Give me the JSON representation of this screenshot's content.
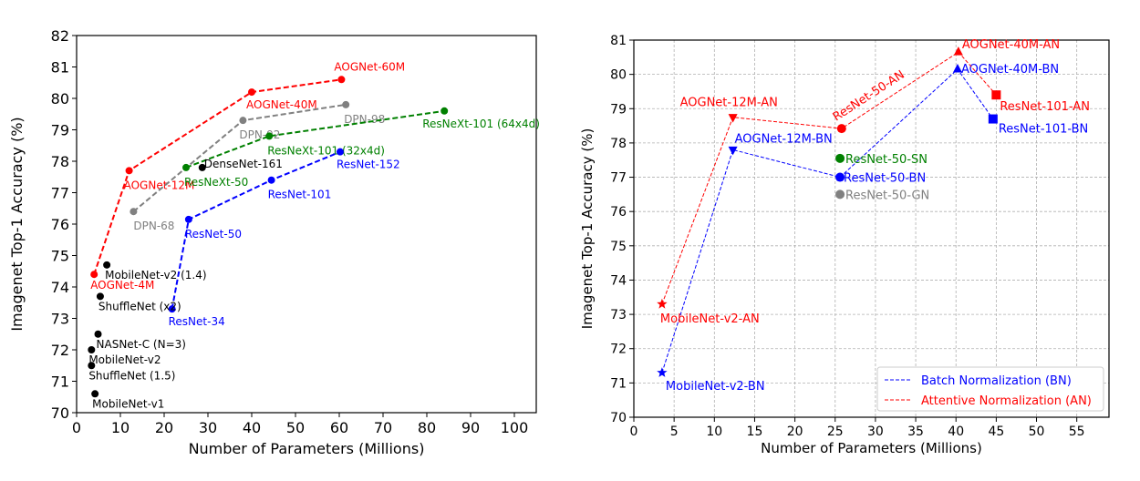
{
  "chart_data": [
    {
      "type": "line",
      "xlabel": "Number of Parameters (Millions)",
      "ylabel": "Imagenet Top-1 Accuracy (%)",
      "xlim": [
        0,
        105
      ],
      "ylim": [
        70,
        82
      ],
      "xticks": [
        0,
        10,
        20,
        30,
        40,
        50,
        60,
        70,
        80,
        90,
        100
      ],
      "yticks": [
        70,
        71,
        72,
        73,
        74,
        75,
        76,
        77,
        78,
        79,
        80,
        81,
        82
      ],
      "grid": false,
      "series": [
        {
          "name": "AOGNet",
          "color": "#ff0000",
          "dashed": true,
          "marker": "circle",
          "points": [
            [
              4,
              74.4
            ],
            [
              12,
              77.7
            ],
            [
              40,
              80.2
            ],
            [
              60.5,
              80.6
            ]
          ],
          "labels": [
            {
              "text": "AOGNet-4M",
              "at": 0
            },
            {
              "text": "AOGNet-12M",
              "at": 1
            },
            {
              "text": "AOGNet-40M",
              "at": 2
            },
            {
              "text": "AOGNet-60M",
              "at": 3
            }
          ]
        },
        {
          "name": "DPN",
          "color": "#808080",
          "dashed": true,
          "marker": "circle",
          "points": [
            [
              13,
              76.4
            ],
            [
              38,
              79.3
            ],
            [
              61.5,
              79.8
            ]
          ],
          "labels": [
            {
              "text": "DPN-68",
              "at": 0
            },
            {
              "text": "DPN-92",
              "at": 1
            },
            {
              "text": "DPN-98",
              "at": 2
            }
          ]
        },
        {
          "name": "ResNeXt",
          "color": "#008000",
          "dashed": true,
          "marker": "circle",
          "points": [
            [
              25,
              77.8
            ],
            [
              44,
              78.8
            ],
            [
              84,
              79.6
            ]
          ],
          "labels": [
            {
              "text": "ResNeXt-50",
              "at": 0
            },
            {
              "text": "ResNeXt-101 (32x4d)",
              "at": 1
            },
            {
              "text": "ResNeXt-101 (64x4d)",
              "at": 2
            }
          ]
        },
        {
          "name": "ResNet",
          "color": "#0000ff",
          "dashed": true,
          "marker": "circle",
          "points": [
            [
              21.8,
              73.3
            ],
            [
              25.6,
              76.15
            ],
            [
              44.5,
              77.4
            ],
            [
              60.2,
              78.3
            ]
          ],
          "labels": [
            {
              "text": "ResNet-34",
              "at": 0
            },
            {
              "text": "ResNet-50",
              "at": 1
            },
            {
              "text": "ResNet-101",
              "at": 2
            },
            {
              "text": "ResNet-152",
              "at": 3
            }
          ]
        }
      ],
      "points": [
        {
          "text": "DenseNet-161",
          "x": 28.7,
          "y": 77.8,
          "color": "#000000"
        },
        {
          "text": "MobileNet-v2 (1.4)",
          "x": 6.9,
          "y": 74.7,
          "color": "#000000"
        },
        {
          "text": "ShuffleNet (x2)",
          "x": 5.4,
          "y": 73.7,
          "color": "#000000"
        },
        {
          "text": "NASNet-C (N=3)",
          "x": 4.9,
          "y": 72.5,
          "color": "#000000"
        },
        {
          "text": "MobileNet-v2",
          "x": 3.4,
          "y": 72.0,
          "color": "#000000"
        },
        {
          "text": "ShuffleNet (1.5)",
          "x": 3.4,
          "y": 71.5,
          "color": "#000000"
        },
        {
          "text": "MobileNet-v1",
          "x": 4.2,
          "y": 70.6,
          "color": "#000000"
        }
      ]
    },
    {
      "type": "line",
      "xlabel": "Number of Parameters (Millions)",
      "ylabel": "Imagenet Top-1 Accuracy (%)",
      "xlim": [
        0,
        59
      ],
      "ylim": [
        70,
        81
      ],
      "xticks": [
        0,
        5,
        10,
        15,
        20,
        25,
        30,
        35,
        40,
        45,
        50,
        55
      ],
      "yticks": [
        70,
        71,
        72,
        73,
        74,
        75,
        76,
        77,
        78,
        79,
        80,
        81
      ],
      "grid": true,
      "legend_position": "bottom-right",
      "series": [
        {
          "name": "Batch Normalization (BN)",
          "color": "#0000ff",
          "dashed": true,
          "points": [
            [
              3.5,
              71.3,
              "star"
            ],
            [
              12.3,
              77.8,
              "tri-down"
            ],
            [
              25.6,
              77.0,
              "circle"
            ],
            [
              40.2,
              80.15,
              "tri-up"
            ],
            [
              44.6,
              78.7,
              "square"
            ]
          ],
          "labels": [
            {
              "text": "MobileNet-v2-BN",
              "at": 0
            },
            {
              "text": "AOGNet-12M-BN",
              "at": 1
            },
            {
              "text": "ResNet-50-BN",
              "at": 2
            },
            {
              "text": "AOGNet-40M-BN",
              "at": 3
            },
            {
              "text": "ResNet-101-BN",
              "at": 4
            }
          ]
        },
        {
          "name": "Attentive Normalization (AN)",
          "color": "#ff0000",
          "dashed": true,
          "points": [
            [
              3.5,
              73.3,
              "star"
            ],
            [
              12.3,
              78.75,
              "tri-down"
            ],
            [
              25.8,
              78.42,
              "circle"
            ],
            [
              40.3,
              80.65,
              "tri-up"
            ],
            [
              45.0,
              79.4,
              "square"
            ]
          ],
          "labels": [
            {
              "text": "MobileNet-v2-AN",
              "at": 0
            },
            {
              "text": "AOGNet-12M-AN",
              "at": 1
            },
            {
              "text": "ResNet-50-AN",
              "at": 2
            },
            {
              "text": "AOGNet-40M-AN",
              "at": 3
            },
            {
              "text": "ResNet-101-AN",
              "at": 4
            }
          ]
        }
      ],
      "points": [
        {
          "text": "ResNet-50-SN",
          "x": 25.6,
          "y": 77.55,
          "color": "#008000"
        },
        {
          "text": "ResNet-50-GN",
          "x": 25.6,
          "y": 76.5,
          "color": "#808080"
        }
      ]
    }
  ]
}
